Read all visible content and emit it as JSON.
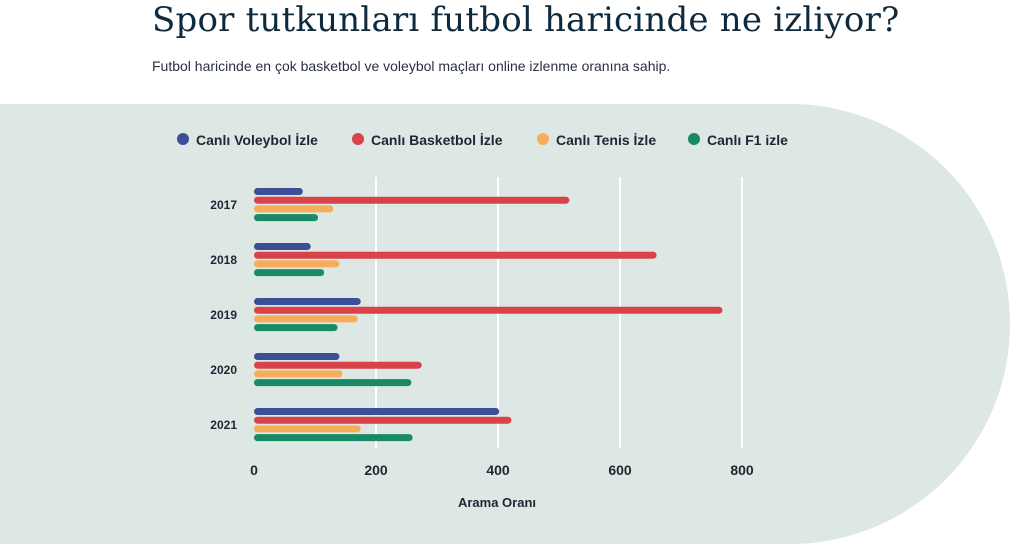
{
  "header": {
    "title": "Spor tutkunları futbol haricinde ne izliyor?",
    "subtitle": "Futbol haricinde en çok basketbol ve voleybol maçları online izlenme oranına sahip."
  },
  "chart_data": {
    "type": "bar",
    "orientation": "horizontal",
    "categories": [
      "2017",
      "2018",
      "2019",
      "2020",
      "2021"
    ],
    "series": [
      {
        "name": "Canlı Voleybol İzle",
        "color": "#3a4f96",
        "values": [
          80,
          93,
          175,
          140,
          402
        ]
      },
      {
        "name": "Canlı Basketbol İzle",
        "color": "#d9424a",
        "values": [
          517,
          660,
          768,
          275,
          422
        ]
      },
      {
        "name": "Canlı Tenis İzle",
        "color": "#f6ad59",
        "values": [
          130,
          140,
          170,
          145,
          175
        ]
      },
      {
        "name": "Canlı F1 izle",
        "color": "#1a8a66",
        "values": [
          105,
          115,
          137,
          258,
          260
        ]
      }
    ],
    "xlabel": "Arama Oranı",
    "xlim": [
      0,
      800
    ],
    "xticks": [
      "0",
      "200",
      "400",
      "600",
      "800"
    ],
    "grid": true,
    "legend": "top"
  }
}
